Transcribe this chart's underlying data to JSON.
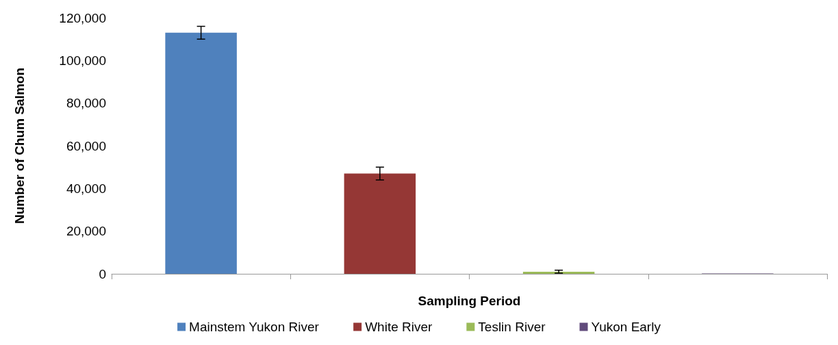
{
  "chart_data": {
    "type": "bar",
    "xlabel": "Sampling Period",
    "ylabel": "Number of Chum Salmon",
    "categories": [
      null,
      null,
      null,
      null
    ],
    "series": [
      {
        "name": "Mainstem Yukon River",
        "color": "#4f81bd",
        "values": [
          113000,
          null,
          null,
          null
        ],
        "errors": [
          3000,
          null,
          null,
          null
        ]
      },
      {
        "name": "White River",
        "color": "#953735",
        "values": [
          null,
          47000,
          null,
          null
        ],
        "errors": [
          null,
          3000,
          null,
          null
        ]
      },
      {
        "name": "Teslin River",
        "color": "#9bbb59",
        "values": [
          null,
          null,
          1000,
          null
        ],
        "errors": [
          null,
          null,
          700,
          null
        ]
      },
      {
        "name": "Yukon Early",
        "color": "#604a7b",
        "values": [
          null,
          null,
          null,
          200
        ],
        "errors": [
          null,
          null,
          null,
          null
        ]
      }
    ],
    "ylim": [
      0,
      120000
    ],
    "yticks": [
      0,
      {
        "value": 20000,
        "label": "20,000"
      },
      {
        "value": 40000,
        "label": "40,000"
      },
      {
        "value": 60000,
        "label": "60,000"
      },
      {
        "value": 80000,
        "label": "80,000"
      },
      {
        "value": 100000,
        "label": "100,000"
      },
      {
        "value": 120000,
        "label": "120,000"
      }
    ],
    "grid": false,
    "legend": "bottom"
  }
}
